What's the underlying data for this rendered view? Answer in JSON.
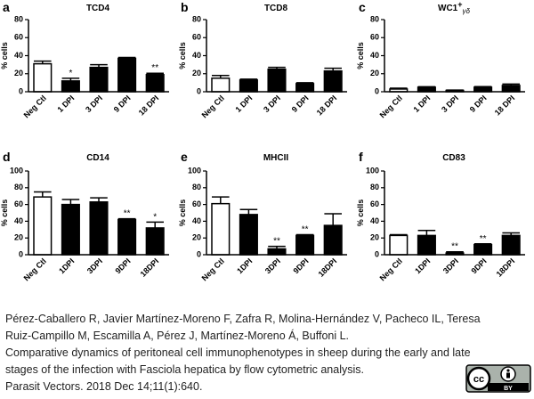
{
  "chart_data": [
    {
      "type": "bar",
      "panel": "a",
      "title": "TCD4",
      "ylabel": "% cells",
      "categories": [
        "Neg Ctl",
        "1 DPI",
        "3 DPI",
        "9 DPI",
        "18 DPI"
      ],
      "values": [
        31,
        12,
        27,
        37,
        19
      ],
      "errors": [
        3,
        3,
        3,
        1,
        1.5
      ],
      "significance": [
        null,
        "*",
        null,
        null,
        "**"
      ],
      "colors": [
        "#ffffff",
        "#000000",
        "#000000",
        "#000000",
        "#000000"
      ],
      "ylim": [
        0,
        80
      ],
      "yticks": [
        0,
        20,
        40,
        60,
        80
      ]
    },
    {
      "type": "bar",
      "panel": "b",
      "title": "TCD8",
      "ylabel": "% cells",
      "categories": [
        "Neg Ctl",
        "1 DPI",
        "3 DPI",
        "9 DPI",
        "18 DPI"
      ],
      "values": [
        15,
        13,
        25,
        9,
        23
      ],
      "errors": [
        3,
        1,
        2,
        1,
        3
      ],
      "colors": [
        "#ffffff",
        "#000000",
        "#000000",
        "#000000",
        "#000000"
      ],
      "ylim": [
        0,
        80
      ],
      "yticks": [
        0,
        20,
        40,
        60,
        80
      ]
    },
    {
      "type": "bar",
      "panel": "c",
      "title": "WC1",
      "title_sup": "+",
      "title_sub": "γδ",
      "ylabel": "% cells",
      "categories": [
        "Neg Ctl",
        "1 DPI",
        "3 DPI",
        "9 DPI",
        "18 DPI"
      ],
      "values": [
        3,
        5,
        1.5,
        5,
        7
      ],
      "errors": [
        1,
        0.5,
        0.3,
        0.7,
        1.5
      ],
      "colors": [
        "#ffffff",
        "#000000",
        "#000000",
        "#000000",
        "#000000"
      ],
      "ylim": [
        0,
        80
      ],
      "yticks": [
        0,
        20,
        40,
        60,
        80
      ]
    },
    {
      "type": "bar",
      "panel": "d",
      "title": "CD14",
      "ylabel": "% cells",
      "categories": [
        "Neg Ctl",
        "1DPI",
        "3DPI",
        "9DPI",
        "18DPI"
      ],
      "values": [
        69,
        60,
        63,
        42,
        32
      ],
      "errors": [
        6,
        6,
        5,
        1,
        7
      ],
      "significance": [
        null,
        null,
        null,
        "**",
        "*"
      ],
      "colors": [
        "#ffffff",
        "#000000",
        "#000000",
        "#000000",
        "#000000"
      ],
      "ylim": [
        0,
        100
      ],
      "yticks": [
        0,
        20,
        40,
        60,
        80,
        100
      ]
    },
    {
      "type": "bar",
      "panel": "e",
      "title": "MHCII",
      "ylabel": "% cells",
      "categories": [
        "Neg Ctl",
        "1DPI",
        "3DPI",
        "9DPI",
        "18DPI"
      ],
      "values": [
        61,
        48,
        7,
        23,
        35
      ],
      "errors": [
        8,
        6,
        3,
        1,
        14
      ],
      "significance": [
        null,
        null,
        "**",
        "**",
        null
      ],
      "colors": [
        "#ffffff",
        "#000000",
        "#000000",
        "#000000",
        "#000000"
      ],
      "ylim": [
        0,
        100
      ],
      "yticks": [
        0,
        20,
        40,
        60,
        80,
        100
      ]
    },
    {
      "type": "bar",
      "panel": "f",
      "title": "CD83",
      "ylabel": "% cells",
      "categories": [
        "Neg Ctl",
        "1DPI",
        "3DPI",
        "9DPI",
        "18DPI"
      ],
      "values": [
        23,
        23,
        2,
        12,
        23
      ],
      "errors": [
        1,
        6,
        1.5,
        1,
        3
      ],
      "significance": [
        null,
        null,
        "**",
        "**",
        null
      ],
      "colors": [
        "#ffffff",
        "#000000",
        "#000000",
        "#000000",
        "#000000"
      ],
      "ylim": [
        0,
        100
      ],
      "yticks": [
        0,
        20,
        40,
        60,
        80,
        100
      ]
    }
  ],
  "citation": {
    "lines": [
      "Pérez-Caballero R, Javier Martínez-Moreno F, Zafra R, Molina-Hernández V, Pacheco IL, Teresa",
      "Ruiz-Campillo M, Escamilla A, Pérez J, Martínez-Moreno Á, Buffoni L.",
      "Comparative dynamics of peritoneal cell immunophenotypes in sheep during the early and late",
      "stages of the infection with Fasciola hepatica by flow  cytometric analysis.",
      "Parasit Vectors. 2018 Dec 14;11(1):640."
    ]
  },
  "license": {
    "cc": "cc",
    "by": "BY"
  }
}
